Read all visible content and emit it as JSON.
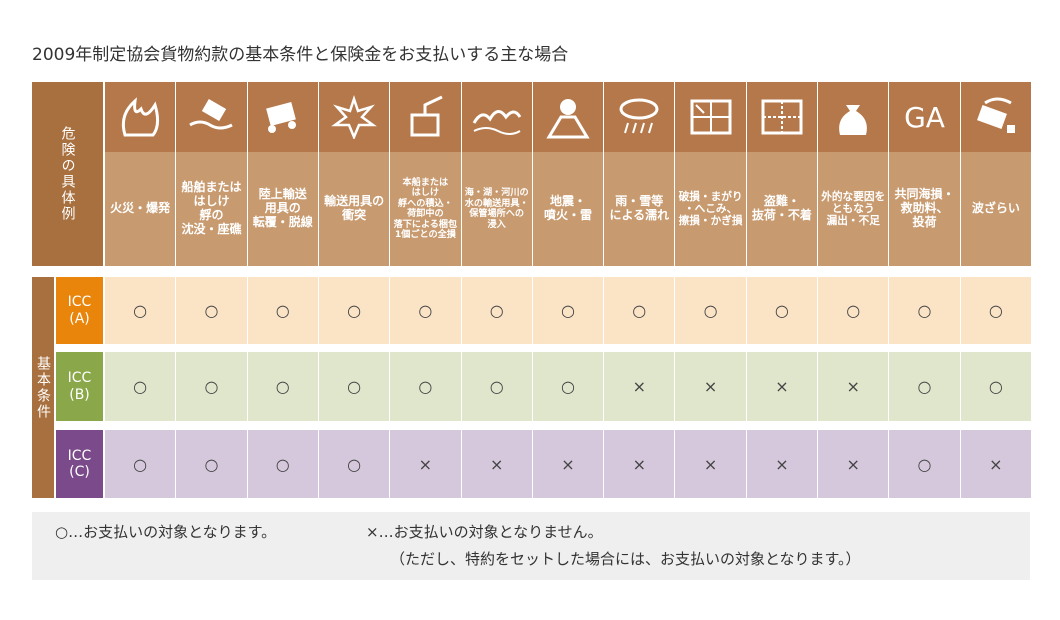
{
  "title": "2009年制定協会貨物約款の基本条件と保険金をお支払いする主な場合",
  "table": {
    "header_label": "危険の具体例",
    "group_label": "基本条件",
    "columns": [
      {
        "label": "火災・爆発"
      },
      {
        "label": "船舶または\nはしけ\n艀の\n沈没・座礁"
      },
      {
        "label": "陸上輸送\n用具の\n転覆・脱線"
      },
      {
        "label": "輸送用具の\n衝突"
      },
      {
        "label": "本船または\nはしけ\n艀への積込・\n荷卸中の\n落下による梱包\n1個ごとの全損"
      },
      {
        "label": "海・湖・河川の\n水の輸送用具・\n保管場所への\n浸入"
      },
      {
        "label": "地震・\n噴火・雷"
      },
      {
        "label": "雨・雪等\nによる濡れ"
      },
      {
        "label": "破損・まがり\n・へこみ、\n擦損・かぎ損"
      },
      {
        "label": "盗難・\n抜荷・不着"
      },
      {
        "label": "外的な要因を\nともなう\n漏出・不足"
      },
      {
        "label": "共同海損・\n救助料、\n投荷",
        "icon": "GA"
      },
      {
        "label": "波ざらい"
      }
    ],
    "rows": [
      {
        "label": "ICC\n(A)",
        "cells": [
          "○",
          "○",
          "○",
          "○",
          "○",
          "○",
          "○",
          "○",
          "○",
          "○",
          "○",
          "○",
          "○"
        ]
      },
      {
        "label": "ICC\n(B)",
        "cells": [
          "○",
          "○",
          "○",
          "○",
          "○",
          "○",
          "○",
          "×",
          "×",
          "×",
          "×",
          "○",
          "○"
        ]
      },
      {
        "label": "ICC\n(C)",
        "cells": [
          "○",
          "○",
          "○",
          "○",
          "×",
          "×",
          "×",
          "×",
          "×",
          "×",
          "×",
          "○",
          "×"
        ]
      }
    ]
  },
  "legend": {
    "yes": "○…お支払いの対象となります。",
    "no": "×…お支払いの対象となりません。",
    "note": "（ただし、特約をセットした場合には、お支払いの対象となります。）"
  }
}
